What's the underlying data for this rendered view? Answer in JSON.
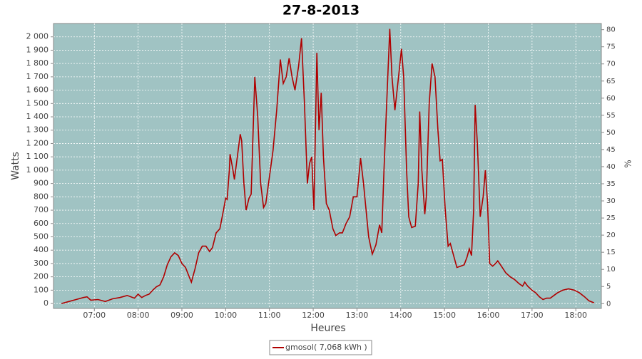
{
  "chart_data": {
    "type": "line",
    "title": "27-8-2013",
    "x_label": "Heures",
    "y_label": "Watts",
    "y2_label": "%",
    "xlim": [
      "06:04",
      "18:35"
    ],
    "xticks": [
      "07:00",
      "08:00",
      "09:00",
      "10:00",
      "11:00",
      "12:00",
      "13:00",
      "14:00",
      "15:00",
      "16:00",
      "17:00",
      "18:00"
    ],
    "ylim": [
      -37,
      2100
    ],
    "yticks": [
      0,
      100,
      200,
      300,
      400,
      500,
      600,
      700,
      800,
      900,
      {
        "value": 1000,
        "label": "1 000"
      },
      {
        "value": 1100,
        "label": "1 100"
      },
      {
        "value": 1200,
        "label": "1 200"
      },
      {
        "value": 1300,
        "label": "1 300"
      },
      {
        "value": 1400,
        "label": "1 400"
      },
      {
        "value": 1500,
        "label": "1 500"
      },
      {
        "value": 1600,
        "label": "1 600"
      },
      {
        "value": 1700,
        "label": "1 700"
      },
      {
        "value": 1800,
        "label": "1 800"
      },
      {
        "value": 1900,
        "label": "1 900"
      },
      {
        "value": 2000,
        "label": "2 000"
      }
    ],
    "y2lim": [
      -1.4,
      81.8
    ],
    "y2ticks": [
      0,
      5,
      10,
      15,
      20,
      25,
      30,
      35,
      40,
      45,
      50,
      55,
      60,
      65,
      70,
      75,
      80
    ],
    "grid": true,
    "legend": "bottom",
    "x": [
      "06:15",
      "06:25",
      "06:35",
      "06:45",
      "06:50",
      "06:55",
      "07:05",
      "07:15",
      "07:25",
      "07:35",
      "07:45",
      "07:55",
      "08:00",
      "08:05",
      "08:10",
      "08:15",
      "08:20",
      "08:25",
      "08:30",
      "08:35",
      "08:40",
      "08:45",
      "08:50",
      "08:55",
      "09:00",
      "09:05",
      "09:10",
      "09:13",
      "09:18",
      "09:23",
      "09:28",
      "09:33",
      "09:38",
      "09:42",
      "09:47",
      "09:52",
      "09:57",
      "10:00",
      "10:02",
      "10:05",
      "10:06",
      "10:10",
      "10:12",
      "10:16",
      "10:20",
      "10:22",
      "10:25",
      "10:28",
      "10:32",
      "10:35",
      "10:40",
      "10:44",
      "10:48",
      "10:52",
      "10:55",
      "11:00",
      "11:05",
      "11:10",
      "11:15",
      "11:19",
      "11:23",
      "11:27",
      "11:31",
      "11:35",
      "11:40",
      "11:44",
      "11:48",
      "11:52",
      "11:55",
      "11:58",
      "12:01",
      "12:05",
      "12:08",
      "12:11",
      "12:14",
      "12:18",
      "12:22",
      "12:27",
      "12:31",
      "12:36",
      "12:40",
      "12:45",
      "12:50",
      "12:55",
      "13:00",
      "13:05",
      "13:09",
      "13:16",
      "13:21",
      "13:26",
      "13:31",
      "13:34",
      "13:37",
      "13:40",
      "13:45",
      "13:48",
      "13:52",
      "13:57",
      "14:01",
      "14:04",
      "14:08",
      "14:11",
      "14:15",
      "14:20",
      "14:24",
      "14:26",
      "14:29",
      "14:33",
      "14:35",
      "14:39",
      "14:43",
      "14:47",
      "14:51",
      "14:54",
      "14:57",
      "15:01",
      "15:05",
      "15:08",
      "15:13",
      "15:17",
      "15:22",
      "15:27",
      "15:31",
      "15:34",
      "15:37",
      "15:40",
      "15:42",
      "15:45",
      "15:49",
      "15:53",
      "15:56",
      "15:59",
      "16:02",
      "16:06",
      "16:10",
      "16:13",
      "16:18",
      "16:24",
      "16:30",
      "16:36",
      "16:42",
      "16:47",
      "16:50",
      "16:54",
      "17:00",
      "17:05",
      "17:10",
      "17:15",
      "17:20",
      "17:25",
      "17:30",
      "17:35",
      "17:42",
      "17:50",
      "17:58",
      "18:05",
      "18:12",
      "18:18",
      "18:25"
    ],
    "series": [
      {
        "name": "gmosol( 7,068 kWh )",
        "color": "#b00000",
        "values": [
          0,
          15,
          30,
          45,
          50,
          25,
          30,
          15,
          35,
          45,
          60,
          40,
          70,
          45,
          60,
          70,
          100,
          125,
          140,
          200,
          290,
          350,
          380,
          360,
          300,
          270,
          200,
          160,
          260,
          380,
          430,
          430,
          390,
          420,
          530,
          560,
          700,
          790,
          780,
          1000,
          1120,
          1000,
          930,
          1100,
          1270,
          1220,
          900,
          700,
          790,
          820,
          1700,
          1400,
          900,
          720,
          750,
          950,
          1150,
          1450,
          1830,
          1650,
          1700,
          1840,
          1700,
          1600,
          1780,
          1990,
          1500,
          900,
          1050,
          1100,
          700,
          1880,
          1300,
          1580,
          1100,
          750,
          700,
          560,
          510,
          530,
          530,
          600,
          650,
          800,
          800,
          1090,
          900,
          500,
          370,
          440,
          590,
          530,
          1000,
          1400,
          2060,
          1700,
          1450,
          1700,
          1910,
          1700,
          1000,
          650,
          570,
          580,
          900,
          1440,
          1000,
          670,
          800,
          1500,
          1800,
          1700,
          1300,
          1070,
          1080,
          700,
          430,
          450,
          350,
          270,
          280,
          290,
          350,
          410,
          360,
          700,
          1490,
          1200,
          650,
          800,
          1000,
          750,
          300,
          280,
          300,
          320,
          280,
          230,
          200,
          180,
          150,
          130,
          160,
          130,
          100,
          80,
          50,
          30,
          40,
          40,
          60,
          80,
          100,
          110,
          100,
          80,
          50,
          20,
          5
        ]
      }
    ]
  }
}
